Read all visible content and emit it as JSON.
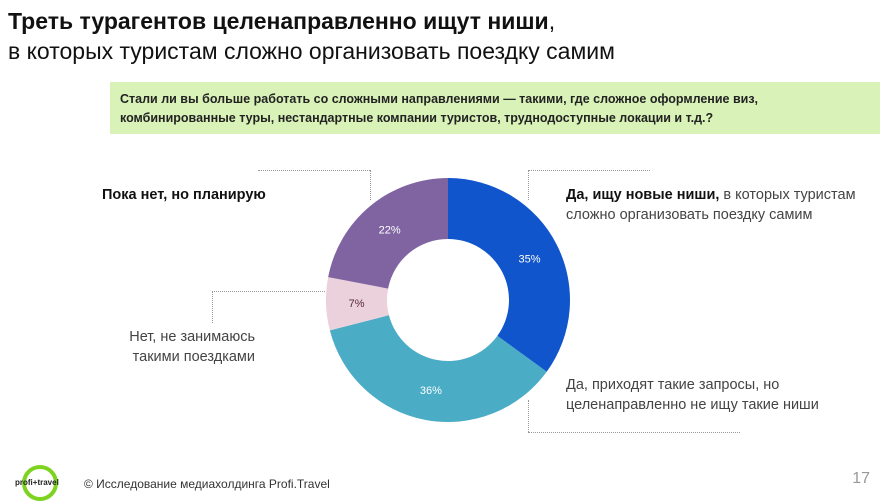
{
  "title": {
    "bold": "Треть турагентов целенаправленно ищут ниши",
    "comma": ",",
    "line2": "в которых туристам сложно организовать поездку самим"
  },
  "question": "Стали ли вы больше работать со сложными направлениями — такими, где сложное оформление виз, комбинированные туры, нестандартные компании туристов, труднодоступные локации и т.д.?",
  "chart_data": {
    "type": "pie",
    "donut": true,
    "slices": [
      {
        "label_bold": "Да, ищу новые ниши,",
        "label": " в которых туристам сложно организовать поездку самим",
        "value": 35,
        "value_label": "35%",
        "color": "#1155cc"
      },
      {
        "label": "Да, приходят такие запросы, но целенаправленно не ищу такие ниши",
        "value": 36,
        "value_label": "36%",
        "color": "#4bacc6"
      },
      {
        "label": "Нет, не занимаюсь такими поездками",
        "value": 7,
        "value_label": "7%",
        "color": "#ead1dc"
      },
      {
        "label_bold": "Пока нет, но планирую",
        "value": 22,
        "value_label": "22%",
        "color": "#8064a2"
      }
    ]
  },
  "footer": {
    "logo": "profi+travel",
    "credit": "© Исследование медиахолдинга Profi.Travel",
    "page": "17"
  }
}
